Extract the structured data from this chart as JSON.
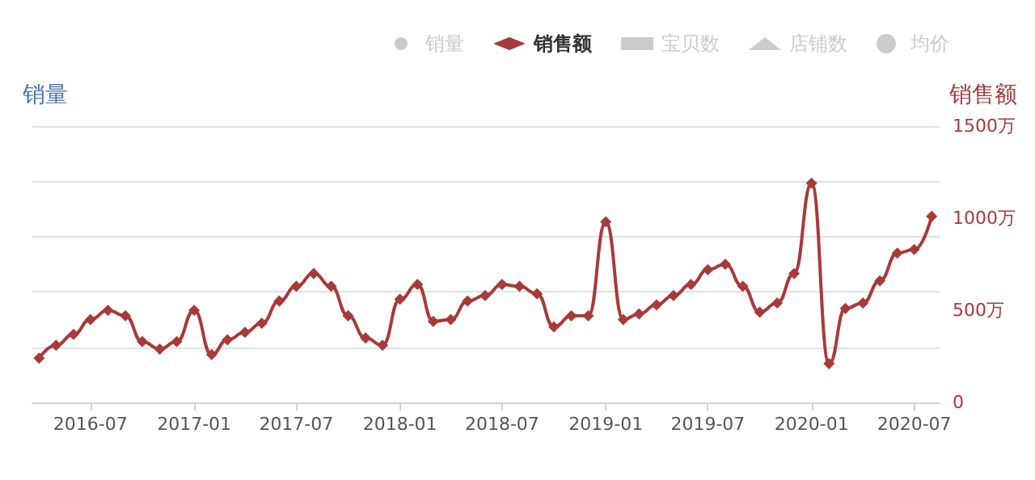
{
  "chart_data": {
    "type": "line",
    "ylabel": "销量",
    "y2label": "销售额",
    "x": [
      "2016-04",
      "2016-05",
      "2016-06",
      "2016-07",
      "2016-08",
      "2016-09",
      "2016-10",
      "2016-11",
      "2016-12",
      "2017-01",
      "2017-02",
      "2017-03",
      "2017-04",
      "2017-05",
      "2017-06",
      "2017-07",
      "2017-08",
      "2017-09",
      "2017-10",
      "2017-11",
      "2017-12",
      "2018-01",
      "2018-02",
      "2018-03",
      "2018-04",
      "2018-05",
      "2018-06",
      "2018-07",
      "2018-08",
      "2018-09",
      "2018-10",
      "2018-11",
      "2018-12",
      "2019-01",
      "2019-02",
      "2019-03",
      "2019-04",
      "2019-05",
      "2019-06",
      "2019-07",
      "2019-08",
      "2019-09",
      "2019-10",
      "2019-11",
      "2019-12",
      "2020-01",
      "2020-02",
      "2020-03",
      "2020-04",
      "2020-05",
      "2020-06",
      "2020-07",
      "2020-08"
    ],
    "series": [
      {
        "name": "销量",
        "color": "#cccccc",
        "marker": "circle",
        "values": [
          null,
          null,
          null,
          null,
          null,
          null,
          null,
          null,
          null,
          null,
          null,
          null,
          null,
          null,
          null,
          null,
          null,
          null,
          null,
          null,
          null,
          null,
          null,
          null,
          null,
          null,
          null,
          null,
          null,
          null,
          null,
          null,
          null,
          null,
          null,
          null,
          null,
          null,
          null,
          null,
          null,
          null,
          null,
          null,
          null,
          null,
          null,
          null,
          null,
          null,
          null,
          null,
          null
        ]
      },
      {
        "name": "销售额",
        "color": "#a83a3a",
        "marker": "diamond",
        "axis": "y2",
        "values": [
          240,
          310,
          370,
          450,
          500,
          470,
          330,
          290,
          330,
          500,
          260,
          340,
          380,
          430,
          550,
          630,
          700,
          630,
          470,
          350,
          310,
          560,
          640,
          440,
          450,
          550,
          580,
          640,
          630,
          590,
          410,
          470,
          470,
          980,
          450,
          480,
          530,
          580,
          640,
          720,
          750,
          630,
          490,
          540,
          700,
          1190,
          210,
          510,
          540,
          660,
          810,
          830,
          1010
        ]
      },
      {
        "name": "宝贝数",
        "color": "#cccccc",
        "marker": "square",
        "values": [
          null,
          null,
          null,
          null,
          null,
          null,
          null,
          null,
          null,
          null,
          null,
          null,
          null,
          null,
          null,
          null,
          null,
          null,
          null,
          null,
          null,
          null,
          null,
          null,
          null,
          null,
          null,
          null,
          null,
          null,
          null,
          null,
          null,
          null,
          null,
          null,
          null,
          null,
          null,
          null,
          null,
          null,
          null,
          null,
          null,
          null,
          null,
          null,
          null,
          null,
          null,
          null,
          null
        ]
      },
      {
        "name": "店铺数",
        "color": "#cccccc",
        "marker": "triangle",
        "values": [
          null,
          null,
          null,
          null,
          null,
          null,
          null,
          null,
          null,
          null,
          null,
          null,
          null,
          null,
          null,
          null,
          null,
          null,
          null,
          null,
          null,
          null,
          null,
          null,
          null,
          null,
          null,
          null,
          null,
          null,
          null,
          null,
          null,
          null,
          null,
          null,
          null,
          null,
          null,
          null,
          null,
          null,
          null,
          null,
          null,
          null,
          null,
          null,
          null,
          null,
          null,
          null,
          null
        ]
      },
      {
        "name": "均价",
        "color": "#cccccc",
        "marker": "cross",
        "values": [
          null,
          null,
          null,
          null,
          null,
          null,
          null,
          null,
          null,
          null,
          null,
          null,
          null,
          null,
          null,
          null,
          null,
          null,
          null,
          null,
          null,
          null,
          null,
          null,
          null,
          null,
          null,
          null,
          null,
          null,
          null,
          null,
          null,
          null,
          null,
          null,
          null,
          null,
          null,
          null,
          null,
          null,
          null,
          null,
          null,
          null,
          null,
          null,
          null,
          null,
          null,
          null,
          null
        ]
      }
    ],
    "xlim": [
      "2016-03-20",
      "2020-08-15"
    ],
    "xticks": [
      "2016-07",
      "2017-01",
      "2017-07",
      "2018-01",
      "2018-07",
      "2019-01",
      "2019-07",
      "2020-01",
      "2020-07"
    ],
    "y2lim": [
      0,
      1500
    ],
    "y2ticks": [
      0,
      {
        "value": 500,
        "label": "500万"
      },
      {
        "value": 1000,
        "label": "1000万"
      },
      {
        "value": 1500,
        "label": "1500万"
      }
    ],
    "grid": "y",
    "legend": "top right",
    "line_style": "solid"
  }
}
